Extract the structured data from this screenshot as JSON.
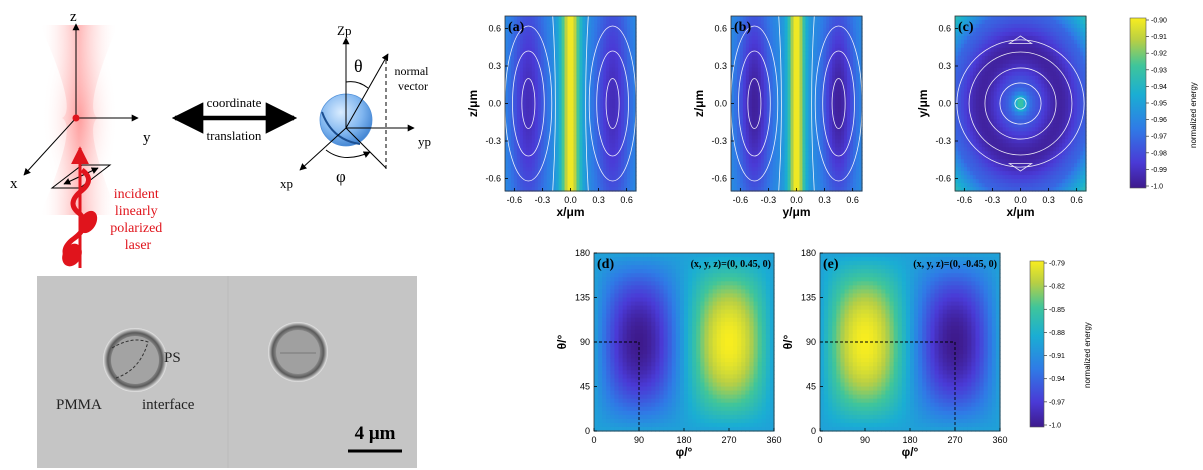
{
  "schematic": {
    "axis_z": "z",
    "axis_y": "y",
    "axis_x": "x",
    "incident_label": [
      "incident",
      "linearly",
      "polarized",
      "laser"
    ],
    "coord_label_top": "coordinate",
    "coord_label_bottom": "translation",
    "zp": "Zp",
    "yp": "yp",
    "xp": "xp",
    "theta": "θ",
    "phi": "φ",
    "normal_vector": [
      "normal",
      "vector"
    ]
  },
  "micrograph": {
    "label_ps": "PS",
    "label_pmma": "PMMA",
    "label_interface": "interface",
    "scale_bar": "4 μm"
  },
  "colorbar_top": {
    "title": "normalized energy",
    "ticks": [
      "-0.90",
      "-0.91",
      "-0.92",
      "-0.93",
      "-0.94",
      "-0.95",
      "-0.96",
      "-0.97",
      "-0.98",
      "-0.99",
      "-1.0"
    ]
  },
  "colorbar_bottom": {
    "title": "normalized energy",
    "ticks": [
      "-0.79",
      "-0.82",
      "-0.85",
      "-0.88",
      "-0.91",
      "-0.94",
      "-0.97",
      "-1.0"
    ]
  },
  "chart_data": [
    {
      "type": "heatmap",
      "panel": "(a)",
      "xlabel": "x/μm",
      "ylabel": "z/μm",
      "xlim": [
        -0.7,
        0.7
      ],
      "ylim": [
        -0.7,
        0.7
      ],
      "xticks": [
        "-0.6",
        "-0.3",
        "0.0",
        "0.3",
        "0.6"
      ],
      "yticks": [
        "0.6",
        "0.3",
        "0.0",
        "-0.3",
        "-0.6"
      ],
      "max_at": [
        0.0,
        "vertical band"
      ],
      "min_at": [
        [
          -0.45,
          0.0
        ],
        [
          0.45,
          0.0
        ]
      ]
    },
    {
      "type": "heatmap",
      "panel": "(b)",
      "xlabel": "y/μm",
      "ylabel": "z/μm",
      "xlim": [
        -0.7,
        0.7
      ],
      "ylim": [
        -0.7,
        0.7
      ],
      "xticks": [
        "-0.6",
        "-0.3",
        "0.0",
        "0.3",
        "0.6"
      ],
      "yticks": [
        "0.6",
        "0.3",
        "0.0",
        "-0.3",
        "-0.6"
      ],
      "max_at": [
        0.0,
        "vertical band"
      ],
      "min_at": [
        [
          -0.45,
          0.0
        ],
        [
          0.45,
          0.0
        ]
      ]
    },
    {
      "type": "heatmap",
      "panel": "(c)",
      "xlabel": "x/μm",
      "ylabel": "y/μm",
      "xlim": [
        -0.7,
        0.7
      ],
      "ylim": [
        -0.7,
        0.7
      ],
      "xticks": [
        "-0.6",
        "-0.3",
        "0.0",
        "0.3",
        "0.6"
      ],
      "yticks": [
        "0.6",
        "0.3",
        "0.0",
        "-0.3",
        "-0.6"
      ],
      "max_at": [
        0.0,
        0.0
      ],
      "min_at": "ring r≈0.45"
    },
    {
      "type": "heatmap",
      "panel": "(d)",
      "annotation": "(x, y, z)=(0, 0.45, 0)",
      "xlabel": "φ/°",
      "ylabel": "θ/°",
      "xlim": [
        0,
        360
      ],
      "ylim": [
        0,
        180
      ],
      "xticks": [
        "0",
        "90",
        "180",
        "270",
        "360"
      ],
      "yticks": [
        "180",
        "135",
        "90",
        "45",
        "0"
      ],
      "min_at": [
        90,
        90
      ],
      "max_at": [
        270,
        90
      ],
      "guide_point": [
        90,
        90
      ]
    },
    {
      "type": "heatmap",
      "panel": "(e)",
      "annotation": "(x, y, z)=(0, -0.45, 0)",
      "xlabel": "φ/°",
      "ylabel": "θ/°",
      "xlim": [
        0,
        360
      ],
      "ylim": [
        0,
        180
      ],
      "xticks": [
        "0",
        "90",
        "180",
        "270",
        "360"
      ],
      "yticks": [
        "180",
        "135",
        "90",
        "45",
        "0"
      ],
      "max_at": [
        90,
        90
      ],
      "min_at": [
        270,
        90
      ],
      "guide_point": [
        270,
        90
      ]
    }
  ]
}
